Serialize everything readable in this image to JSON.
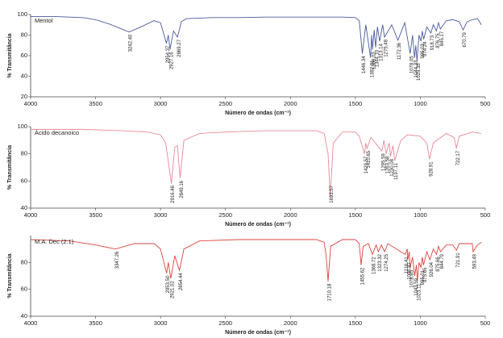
{
  "chart_data": [
    {
      "type": "line",
      "x_label": "Número de ondas (cm⁻¹)",
      "y_label": "% Transmitância",
      "xlim": [
        4000,
        500
      ],
      "xticks": [
        4000,
        3500,
        3000,
        2500,
        2000,
        1500,
        1000,
        500
      ],
      "ylim": [
        20,
        100
      ],
      "yticks": [
        20,
        40,
        60,
        80,
        100
      ],
      "x": [
        4000,
        3800,
        3600,
        3500,
        3400,
        3320,
        3242.4,
        3150,
        3050,
        3000,
        2954.37,
        2940,
        2927.16,
        2900,
        2869.27,
        2840,
        2800,
        2600,
        2400,
        2200,
        2000,
        1800,
        1600,
        1500,
        1470,
        1446.34,
        1420,
        1382.91,
        1375,
        1368.03,
        1355,
        1344.1,
        1330,
        1313.14,
        1290,
        1275.48,
        1220,
        1172.36,
        1120,
        1078.05,
        1060,
        1044.33,
        1035,
        1025.35,
        1010,
        995.03,
        985,
        974.24,
        950,
        918.73,
        900,
        876.75,
        860,
        845.17,
        800,
        750,
        700,
        670.79,
        640,
        600,
        560,
        530
      ],
      "series": [
        {
          "name": "Mentol",
          "color": "#4a5a9c",
          "values": [
            98,
            98,
            97,
            95,
            91,
            87,
            83,
            88,
            94,
            92,
            72,
            80,
            66,
            84,
            78,
            93,
            96,
            97,
            97,
            97.5,
            97.5,
            97.5,
            97.5,
            97,
            94,
            62,
            90,
            58,
            80,
            66,
            85,
            68,
            88,
            74,
            90,
            78,
            90,
            75,
            92,
            62,
            80,
            58,
            70,
            55,
            80,
            74,
            84,
            76,
            88,
            82,
            90,
            84,
            92,
            86,
            94,
            95,
            93,
            85,
            93,
            95,
            96,
            90
          ]
        }
      ],
      "peak_labels": [
        {
          "value": 3242.4,
          "label": "3242.40"
        },
        {
          "value": 2954.37,
          "label": "2954.37"
        },
        {
          "value": 2927.16,
          "label": "2927.16"
        },
        {
          "value": 2869.27,
          "label": "2869.27"
        },
        {
          "value": 1446.34,
          "label": "1446.34"
        },
        {
          "value": 1382.91,
          "label": "1382.91"
        },
        {
          "value": 1368.03,
          "label": "1368.03"
        },
        {
          "value": 1344.1,
          "label": "1344.10"
        },
        {
          "value": 1313.14,
          "label": "1313.14"
        },
        {
          "value": 1275.48,
          "label": "1275.48"
        },
        {
          "value": 1172.36,
          "label": "1172.36"
        },
        {
          "value": 1078.05,
          "label": "1078.05"
        },
        {
          "value": 1044.33,
          "label": "1044.33"
        },
        {
          "value": 1025.35,
          "label": "1025.35"
        },
        {
          "value": 995.03,
          "label": "995.03"
        },
        {
          "value": 974.24,
          "label": "974.24"
        },
        {
          "value": 918.73,
          "label": "918.73"
        },
        {
          "value": 876.75,
          "label": "876.75"
        },
        {
          "value": 845.17,
          "label": "845.17"
        },
        {
          "value": 670.79,
          "label": "670.79"
        }
      ]
    },
    {
      "type": "line",
      "x_label": "Número de ondas (cm⁻¹)",
      "y_label": "% Transmitância",
      "xlim": [
        4000,
        500
      ],
      "xticks": [
        4000,
        3500,
        3000,
        2500,
        2000,
        1500,
        1000,
        500
      ],
      "ylim": [
        40,
        100
      ],
      "yticks": [
        40,
        60,
        80,
        100
      ],
      "x": [
        4000,
        3600,
        3300,
        3100,
        3000,
        2960,
        2916.46,
        2890,
        2870,
        2849.16,
        2820,
        2700,
        2500,
        2200,
        2000,
        1800,
        1740,
        1710,
        1693.57,
        1670,
        1600,
        1500,
        1470,
        1429.57,
        1420,
        1410.65,
        1380,
        1295.59,
        1280,
        1263.58,
        1240,
        1230.08,
        1210,
        1197.11,
        1150,
        1100,
        1000,
        950,
        928.91,
        900,
        800,
        740,
        722.17,
        700,
        600,
        530
      ],
      "series": [
        {
          "name": "Ácido decanoico",
          "color": "#e8899a",
          "values": [
            98,
            98,
            97,
            96,
            94,
            88,
            58,
            85,
            86,
            62,
            90,
            95,
            96,
            97,
            97,
            97,
            95,
            80,
            48,
            88,
            96,
            96,
            93,
            80,
            88,
            84,
            92,
            82,
            90,
            80,
            88,
            78,
            86,
            75,
            90,
            94,
            93,
            88,
            76,
            88,
            95,
            92,
            84,
            93,
            96,
            95
          ]
        }
      ],
      "peak_labels": [
        {
          "value": 2916.46,
          "label": "2916.46"
        },
        {
          "value": 2849.16,
          "label": "2849.16"
        },
        {
          "value": 1693.57,
          "label": "1693.57"
        },
        {
          "value": 1429.57,
          "label": "1429.57"
        },
        {
          "value": 1410.65,
          "label": "1410.65"
        },
        {
          "value": 1295.59,
          "label": "1295.59"
        },
        {
          "value": 1263.58,
          "label": "1263.58"
        },
        {
          "value": 1230.08,
          "label": "1230.08"
        },
        {
          "value": 1197.11,
          "label": "1197.11"
        },
        {
          "value": 928.91,
          "label": "928.91"
        },
        {
          "value": 722.17,
          "label": "722.17"
        }
      ]
    },
    {
      "type": "line",
      "x_label": "Número de ondas (cm⁻¹)",
      "y_label": "% Transmitância",
      "xlim": [
        4000,
        500
      ],
      "xticks": [
        4000,
        3500,
        3000,
        2500,
        2000,
        1500,
        1000,
        500
      ],
      "ylim": [
        40,
        100
      ],
      "yticks": [
        40,
        60,
        80
      ],
      "x": [
        4000,
        3700,
        3500,
        3347.26,
        3200,
        3050,
        3000,
        2953.5,
        2940,
        2921.02,
        2890,
        2854.44,
        2820,
        2700,
        2400,
        2000,
        1800,
        1740,
        1725,
        1710.18,
        1690,
        1600,
        1500,
        1470,
        1455.62,
        1440,
        1400,
        1368.72,
        1340,
        1323.32,
        1300,
        1274.25,
        1250,
        1116.41,
        1100,
        1096.87,
        1085,
        1078.85,
        1060,
        1043.59,
        1030,
        1023.11,
        1010,
        995.01,
        985,
        975.65,
        950,
        926.04,
        900,
        875.66,
        860,
        844.79,
        800,
        750,
        721.91,
        700,
        600,
        593.49,
        560,
        530
      ],
      "series": [
        {
          "name": "M.A. Dec (2:1)",
          "color": "#d9453f",
          "values": [
            97,
            96,
            93,
            90,
            94,
            94,
            90,
            72,
            80,
            68,
            85,
            74,
            90,
            96,
            97,
            97,
            97,
            95,
            85,
            66,
            92,
            97,
            97,
            94,
            78,
            92,
            94,
            86,
            93,
            88,
            93,
            88,
            94,
            86,
            90,
            82,
            88,
            76,
            84,
            70,
            78,
            66,
            80,
            76,
            84,
            78,
            88,
            82,
            90,
            86,
            92,
            88,
            93,
            93,
            89,
            94,
            94,
            88,
            93,
            95
          ]
        }
      ],
      "peak_labels": [
        {
          "value": 3347.26,
          "label": "3347.26"
        },
        {
          "value": 2953.5,
          "label": "2953.50"
        },
        {
          "value": 2921.02,
          "label": "2921.02"
        },
        {
          "value": 2854.44,
          "label": "2854.44"
        },
        {
          "value": 1710.18,
          "label": "1710.18"
        },
        {
          "value": 1455.62,
          "label": "1455.62"
        },
        {
          "value": 1368.72,
          "label": "1368.72"
        },
        {
          "value": 1323.32,
          "label": "1323.32"
        },
        {
          "value": 1274.25,
          "label": "1274.25"
        },
        {
          "value": 1116.41,
          "label": "1116.41"
        },
        {
          "value": 1096.87,
          "label": "1096.87"
        },
        {
          "value": 1078.85,
          "label": "1078.85"
        },
        {
          "value": 1043.59,
          "label": "1043.59"
        },
        {
          "value": 1023.11,
          "label": "1023.11"
        },
        {
          "value": 995.01,
          "label": "995.01"
        },
        {
          "value": 975.65,
          "label": "975.65"
        },
        {
          "value": 926.04,
          "label": "926.04"
        },
        {
          "value": 875.66,
          "label": "875.66"
        },
        {
          "value": 844.79,
          "label": "844.79"
        },
        {
          "value": 721.91,
          "label": "721.91"
        },
        {
          "value": 593.49,
          "label": "593.49"
        }
      ]
    }
  ]
}
